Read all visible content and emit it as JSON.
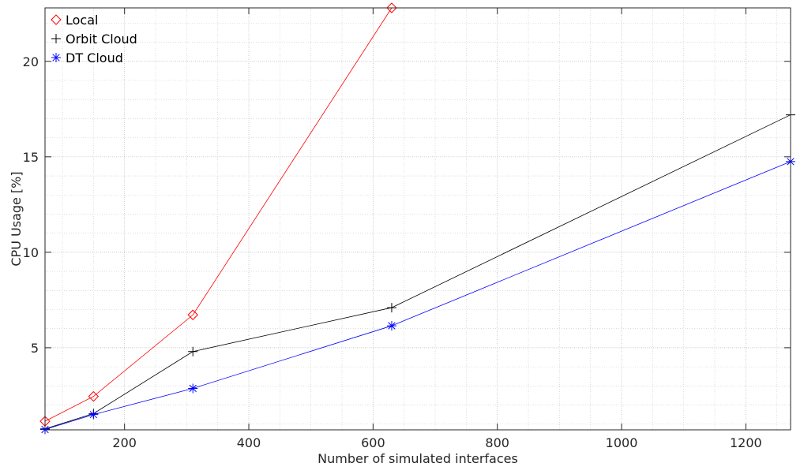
{
  "chart_data": {
    "type": "line",
    "xlabel": "Number of simulated interfaces",
    "ylabel": "CPU Usage [%]",
    "xlim": [
      72,
      1272
    ],
    "ylim": [
      0.7,
      22.8
    ],
    "x_ticks": [
      200,
      400,
      600,
      800,
      1000,
      1200
    ],
    "y_ticks": [
      5,
      10,
      15,
      20
    ],
    "grid": true,
    "minor_grid": true,
    "legend_position": "top-left",
    "series": [
      {
        "name": "Local",
        "color": "#ff0000",
        "marker": "diamond",
        "x": [
          72,
          150,
          310,
          630
        ],
        "y": [
          1.15,
          2.45,
          6.72,
          22.8
        ]
      },
      {
        "name": "Orbit Cloud",
        "color": "#000000",
        "marker": "plus",
        "x": [
          72,
          150,
          310,
          630,
          1272
        ],
        "y": [
          0.75,
          1.55,
          4.8,
          7.1,
          17.2
        ]
      },
      {
        "name": "DT Cloud",
        "color": "#0000ff",
        "marker": "asterisk",
        "x": [
          72,
          150,
          310,
          630,
          1272
        ],
        "y": [
          0.72,
          1.5,
          2.87,
          6.15,
          14.75
        ]
      }
    ]
  }
}
